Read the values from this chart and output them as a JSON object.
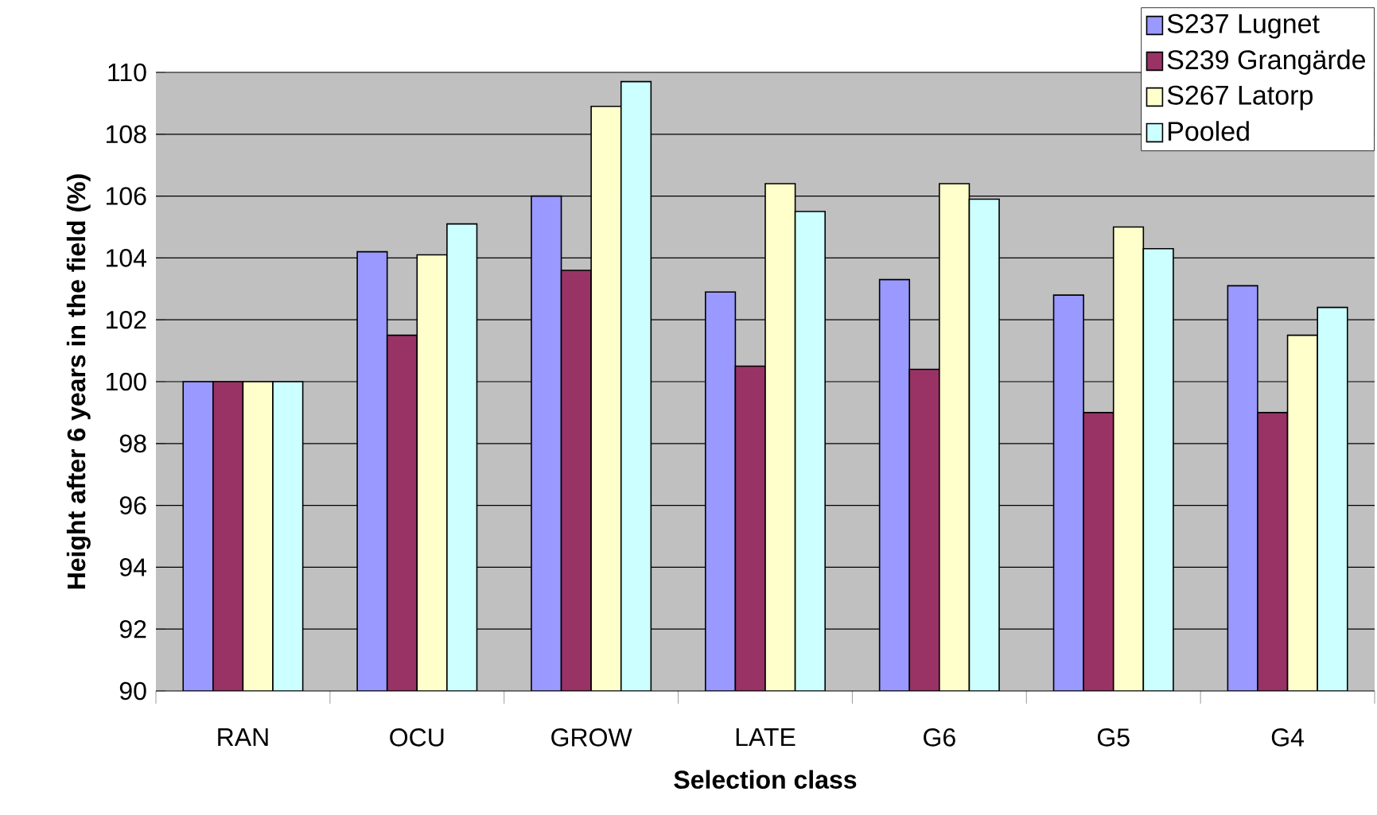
{
  "chart_data": {
    "type": "bar",
    "xlabel": "Selection class",
    "ylabel": "Height after 6 years in the field (%)",
    "categories": [
      "RAN",
      "OCU",
      "GROW",
      "LATE",
      "G6",
      "G5",
      "G4"
    ],
    "series": [
      {
        "name": "S237 Lugnet",
        "color": "#9999ff",
        "values": [
          100,
          104.2,
          106.0,
          102.9,
          103.3,
          102.8,
          103.1
        ]
      },
      {
        "name": "S239 Grangärde",
        "color": "#993366",
        "values": [
          100,
          101.5,
          103.6,
          100.5,
          100.4,
          99.0,
          99.0
        ]
      },
      {
        "name": "S267 Latorp",
        "color": "#ffffcc",
        "values": [
          100,
          104.1,
          108.9,
          106.4,
          106.4,
          105.0,
          101.5
        ]
      },
      {
        "name": "Pooled",
        "color": "#ccffff",
        "values": [
          100,
          105.1,
          109.7,
          105.5,
          105.9,
          104.3,
          102.4
        ]
      }
    ],
    "ylim": [
      90,
      110
    ],
    "yticks": [
      90,
      92,
      94,
      96,
      98,
      100,
      102,
      104,
      106,
      108,
      110
    ],
    "grid": "y",
    "legend": "top right"
  }
}
